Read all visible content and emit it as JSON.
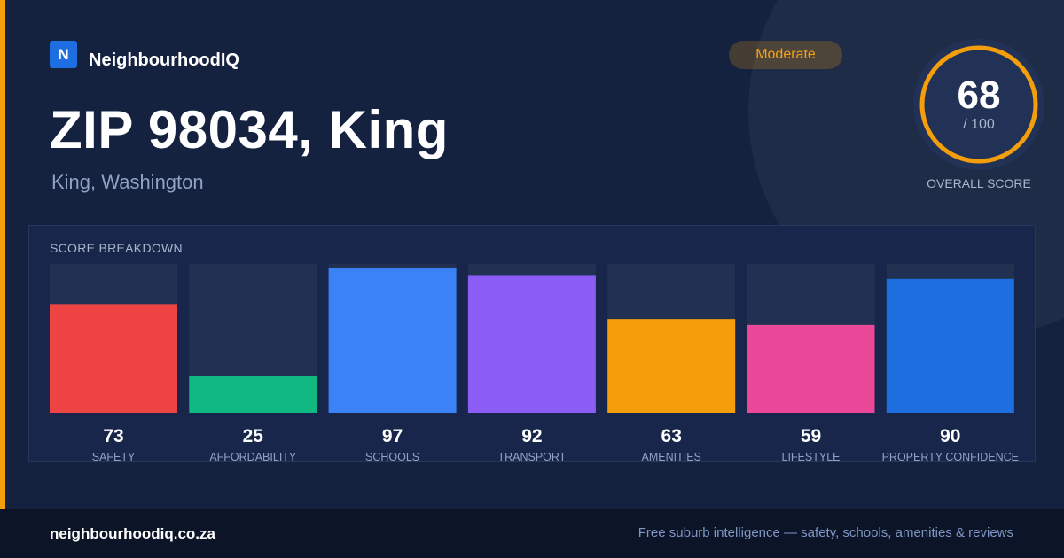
{
  "brand": {
    "logo_letter": "N",
    "name": "NeighbourhoodIQ",
    "logo_color": "#1d6fe0",
    "accent_color": "#f59e0b"
  },
  "header": {
    "title": "ZIP 98034, King",
    "subtitle": "King, Washington",
    "badge": "Moderate",
    "badge_color": "#f5a316"
  },
  "overall_score": {
    "value": "68",
    "max_label": "/ 100",
    "caption": "OVERALL SCORE",
    "fraction": 0.68,
    "ring_color": "#f59e0b"
  },
  "breakdown": {
    "title": "SCORE BREAKDOWN"
  },
  "chart_data": {
    "type": "bar",
    "title": "SCORE BREAKDOWN",
    "categories": [
      "SAFETY",
      "AFFORDABILITY",
      "SCHOOLS",
      "TRANSPORT",
      "AMENITIES",
      "LIFESTYLE",
      "PROPERTY CONFIDENCE"
    ],
    "values": [
      73,
      25,
      97,
      92,
      63,
      59,
      90
    ],
    "colors": [
      "#ef4444",
      "#10b981",
      "#3b82f6",
      "#8b5cf6",
      "#f59e0b",
      "#ec4899",
      "#1d6fe0"
    ],
    "ylim": [
      0,
      100
    ],
    "grid": false,
    "legend": "none"
  },
  "footer": {
    "url": "neighbourhoodiq.co.za",
    "tagline": "Free suburb intelligence — safety, schools, amenities & reviews"
  }
}
